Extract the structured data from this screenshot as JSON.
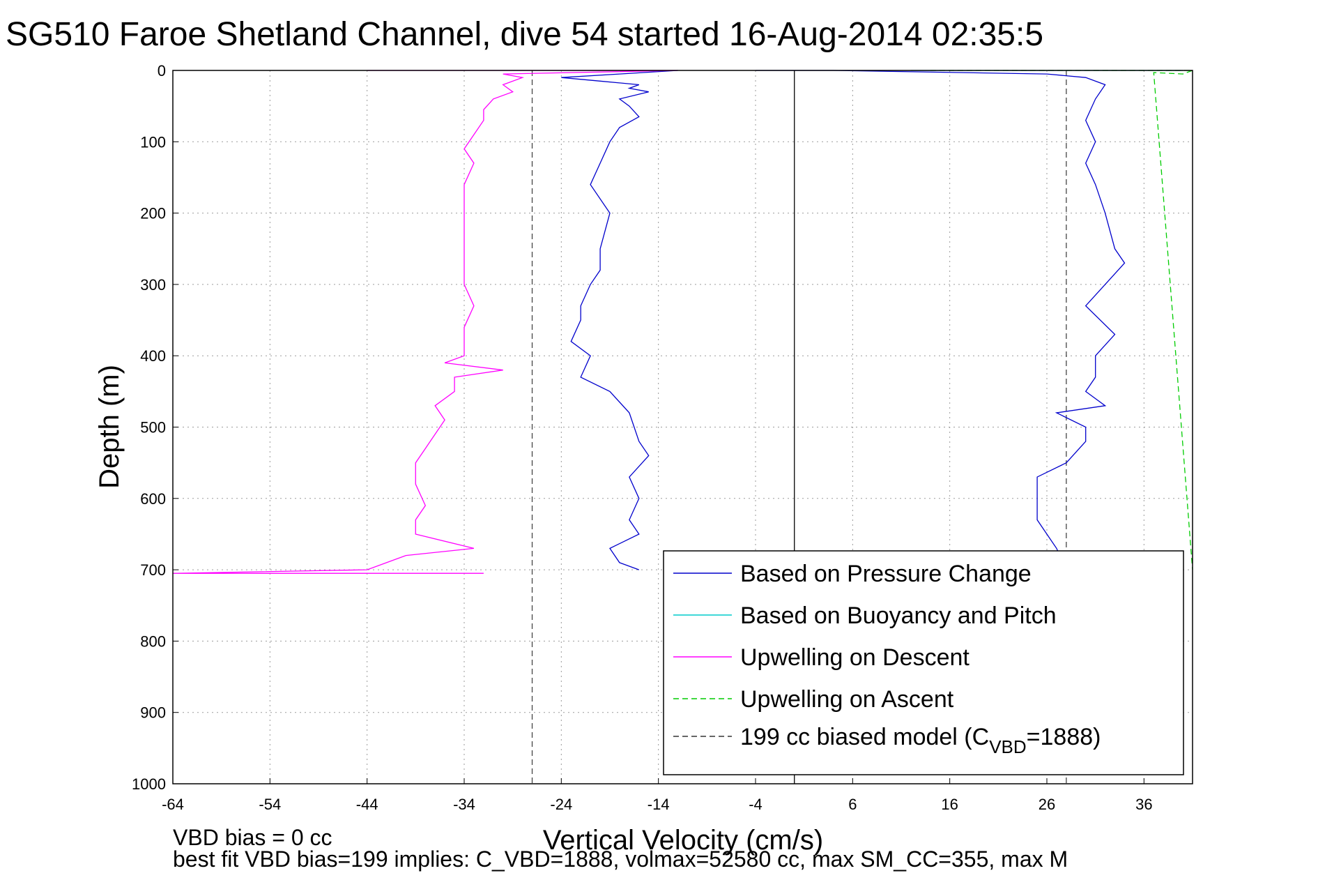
{
  "chart_data": {
    "type": "line",
    "title": "SG510 Faroe Shetland Channel, dive 54 started 16-Aug-2014 02:35:5",
    "xlabel": "Vertical Velocity (cm/s)",
    "ylabel": "Depth (m)",
    "xlim": [
      -64,
      41
    ],
    "ylim": [
      0,
      1000
    ],
    "y_reversed": true,
    "grid": true,
    "legend_position": "bottom-right",
    "x_ticks": [
      "-64",
      "-54",
      "-44",
      "-34",
      "-24",
      "-14",
      "-4",
      "6",
      "16",
      "26",
      "36"
    ],
    "y_ticks": [
      "0",
      "100",
      "200",
      "300",
      "400",
      "500",
      "600",
      "700",
      "800",
      "900",
      "1000"
    ],
    "model_lines_x": [
      -27,
      28,
      0
    ],
    "series": [
      {
        "name": "Based on Pressure Change",
        "color": "#0000cc",
        "style": "solid",
        "points": [
          [
            -12,
            0
          ],
          [
            -18,
            5
          ],
          [
            -24,
            10
          ],
          [
            -20,
            15
          ],
          [
            -16,
            20
          ],
          [
            -17,
            25
          ],
          [
            -15,
            30
          ],
          [
            -18,
            40
          ],
          [
            -17,
            50
          ],
          [
            -16,
            65
          ],
          [
            -18,
            80
          ],
          [
            -19,
            100
          ],
          [
            -20,
            130
          ],
          [
            -21,
            160
          ],
          [
            -19,
            200
          ],
          [
            -20,
            250
          ],
          [
            -20,
            280
          ],
          [
            -21,
            300
          ],
          [
            -22,
            330
          ],
          [
            -22,
            350
          ],
          [
            -23,
            380
          ],
          [
            -21,
            400
          ],
          [
            -22,
            430
          ],
          [
            -19,
            450
          ],
          [
            -17,
            480
          ],
          [
            -16,
            520
          ],
          [
            -15,
            540
          ],
          [
            -17,
            570
          ],
          [
            -16,
            600
          ],
          [
            -17,
            630
          ],
          [
            -16,
            650
          ],
          [
            -19,
            670
          ],
          [
            -18,
            690
          ],
          [
            -16,
            700
          ]
        ]
      },
      {
        "name": "Based on Pressure Change (ascent)",
        "color": "#0000cc",
        "style": "solid",
        "points": [
          [
            -4,
            0
          ],
          [
            4,
            0
          ],
          [
            26,
            5
          ],
          [
            30,
            10
          ],
          [
            32,
            20
          ],
          [
            31,
            40
          ],
          [
            30,
            70
          ],
          [
            31,
            100
          ],
          [
            30,
            130
          ],
          [
            31,
            160
          ],
          [
            32,
            200
          ],
          [
            33,
            250
          ],
          [
            34,
            270
          ],
          [
            32,
            300
          ],
          [
            30,
            330
          ],
          [
            33,
            370
          ],
          [
            31,
            400
          ],
          [
            31,
            430
          ],
          [
            30,
            450
          ],
          [
            32,
            470
          ],
          [
            27,
            480
          ],
          [
            30,
            500
          ],
          [
            30,
            520
          ],
          [
            28,
            550
          ],
          [
            25,
            570
          ],
          [
            25,
            600
          ],
          [
            25,
            630
          ],
          [
            26,
            650
          ],
          [
            27,
            670
          ],
          [
            28,
            700
          ]
        ]
      },
      {
        "name": "Based on Buoyancy and Pitch",
        "color": "#00cccc",
        "style": "solid",
        "points": [
          [
            12,
            0
          ],
          [
            40,
            0
          ]
        ]
      },
      {
        "name": "Upwelling on Descent",
        "color": "#ff00ff",
        "style": "solid",
        "points": [
          [
            -44,
            0
          ],
          [
            -12,
            0
          ],
          [
            -30,
            5
          ],
          [
            -28,
            10
          ],
          [
            -30,
            20
          ],
          [
            -29,
            30
          ],
          [
            -31,
            40
          ],
          [
            -32,
            55
          ],
          [
            -32,
            70
          ],
          [
            -33,
            90
          ],
          [
            -34,
            110
          ],
          [
            -33,
            130
          ],
          [
            -34,
            160
          ],
          [
            -34,
            200
          ],
          [
            -34,
            250
          ],
          [
            -34,
            300
          ],
          [
            -33,
            330
          ],
          [
            -34,
            360
          ],
          [
            -34,
            380
          ],
          [
            -34,
            400
          ],
          [
            -36,
            410
          ],
          [
            -30,
            420
          ],
          [
            -35,
            430
          ],
          [
            -35,
            450
          ],
          [
            -37,
            470
          ],
          [
            -36,
            490
          ],
          [
            -37,
            510
          ],
          [
            -38,
            530
          ],
          [
            -39,
            550
          ],
          [
            -39,
            580
          ],
          [
            -38,
            610
          ],
          [
            -39,
            630
          ],
          [
            -39,
            650
          ],
          [
            -33,
            670
          ],
          [
            -40,
            680
          ],
          [
            -42,
            690
          ],
          [
            -44,
            700
          ],
          [
            -64,
            705
          ],
          [
            -32,
            705
          ]
        ]
      },
      {
        "name": "Upwelling on Ascent",
        "color": "#00cc00",
        "style": "dashed",
        "points": [
          [
            14,
            0
          ],
          [
            41,
            0
          ],
          [
            40,
            5
          ],
          [
            37,
            3
          ],
          [
            41,
            700
          ]
        ]
      },
      {
        "name": "199 cc biased model (C_VBD=1888)",
        "color": "#333333",
        "style": "dashed",
        "points": [
          [
            -27,
            0
          ],
          [
            -27,
            1000
          ]
        ]
      }
    ],
    "legend": [
      {
        "label": "Based on Pressure Change",
        "color": "#0000cc",
        "style": "solid"
      },
      {
        "label": "Based on Buoyancy and Pitch",
        "color": "#00cccc",
        "style": "solid"
      },
      {
        "label": "Upwelling on Descent",
        "color": "#ff00ff",
        "style": "solid"
      },
      {
        "label": "Upwelling on Ascent",
        "color": "#00cc00",
        "style": "dashed"
      },
      {
        "label": "199 cc biased model (C",
        "label_sub": "VBD",
        "label_tail": "=1888)",
        "color": "#333333",
        "style": "dashed"
      }
    ]
  },
  "notes": {
    "line1": "VBD bias = 0 cc",
    "line2": "best fit VBD bias=199 implies: C_VBD=1888, volmax=52580 cc, max SM_CC=355, max M"
  }
}
